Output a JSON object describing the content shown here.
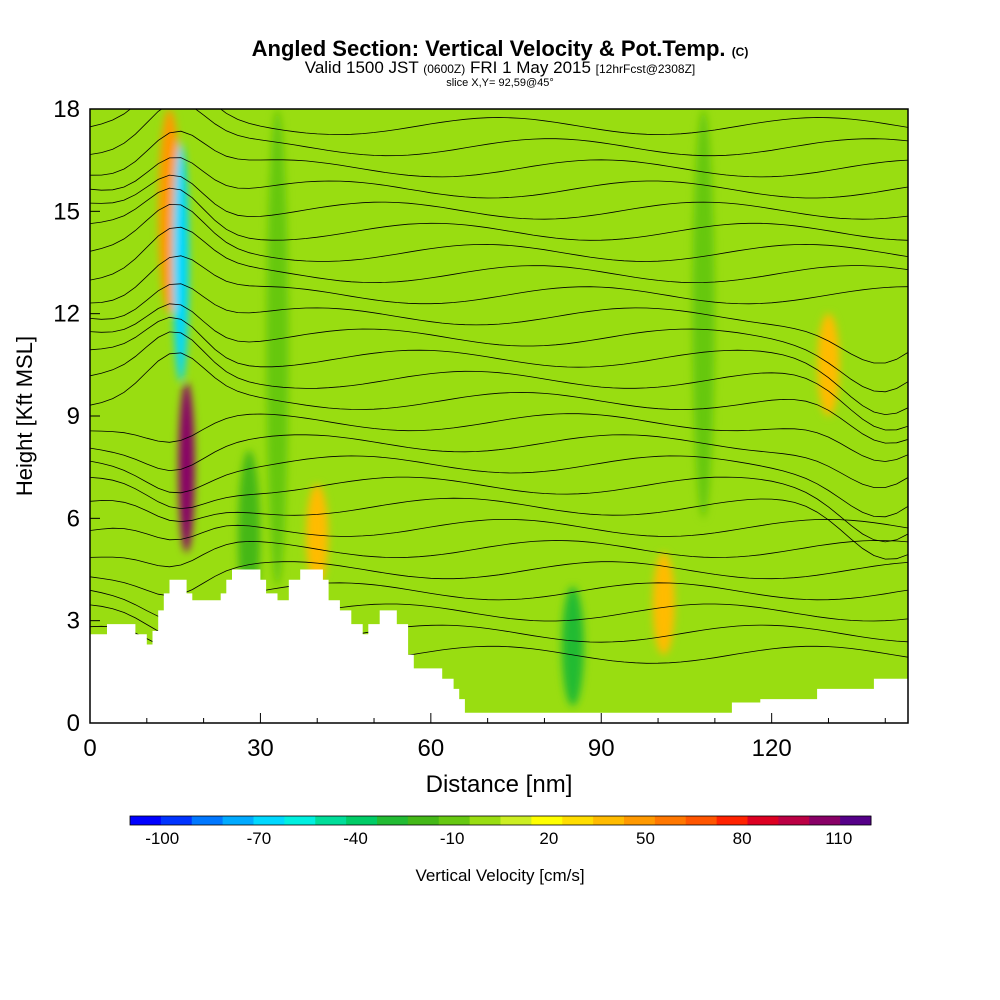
{
  "header": {
    "title": "Angled Section: Vertical Velocity & Pot.Temp.",
    "title_mark": "(C)",
    "valid_main": "Valid 1500 JST",
    "valid_utc": "(0600Z)",
    "valid_date": "FRI 1 May 2015",
    "forecast": "[12hrFcst@2308Z]",
    "slice": "slice X,Y= 92,59@45°"
  },
  "chart_data": {
    "type": "heatmap",
    "xlabel": "Distance [nm]",
    "ylabel": "Height [Kft MSL]",
    "xlim": [
      0,
      144
    ],
    "ylim": [
      0,
      18
    ],
    "x_ticks": [
      0,
      30,
      60,
      90,
      120
    ],
    "y_ticks": [
      0,
      3,
      6,
      9,
      12,
      15,
      18
    ],
    "colorbar": {
      "label": "Vertical Velocity [cm/s]",
      "min": -110,
      "max": 120,
      "step": 10,
      "tick_labels": [
        "-100",
        "-70",
        "-40",
        "-10",
        "20",
        "50",
        "80",
        "110"
      ],
      "colors": [
        "#0000ff",
        "#0033ff",
        "#0077ff",
        "#00aaff",
        "#00d8ff",
        "#00f0e0",
        "#00dd99",
        "#00cc66",
        "#22bb33",
        "#44b818",
        "#66c811",
        "#99dd11",
        "#ccee22",
        "#ffff00",
        "#ffdd00",
        "#ffbb00",
        "#ff9900",
        "#ff7700",
        "#ff5500",
        "#ff2200",
        "#dd0022",
        "#bb0044",
        "#880066",
        "#550088"
      ]
    },
    "velocity_features": [
      {
        "x": 14,
        "y_range": [
          12,
          18
        ],
        "value": 50,
        "kind": "updraft"
      },
      {
        "x": 17,
        "y_range": [
          5,
          10
        ],
        "value": 110,
        "kind": "updraft core"
      },
      {
        "x": 16,
        "y_range": [
          10,
          17
        ],
        "value": -70,
        "kind": "downdraft"
      },
      {
        "x": 40,
        "y_range": [
          4,
          7
        ],
        "value": 40,
        "kind": "updraft"
      },
      {
        "x": 101,
        "y_range": [
          2,
          5
        ],
        "value": 40,
        "kind": "updraft"
      },
      {
        "x": 130,
        "y_range": [
          9,
          12
        ],
        "value": 40,
        "kind": "updraft"
      },
      {
        "x": 28,
        "y_range": [
          3,
          8
        ],
        "value": -20,
        "kind": "downdraft"
      },
      {
        "x": 33,
        "y_range": [
          4,
          18
        ],
        "value": -10,
        "kind": "downdraft"
      },
      {
        "x": 85,
        "y_range": [
          0.5,
          4
        ],
        "value": -30,
        "kind": "downdraft"
      },
      {
        "x": 108,
        "y_range": [
          6,
          18
        ],
        "value": -10,
        "kind": "downdraft"
      }
    ],
    "terrain": [
      [
        0,
        2.6
      ],
      [
        3,
        2.6
      ],
      [
        3,
        2.9
      ],
      [
        8,
        2.9
      ],
      [
        8,
        2.6
      ],
      [
        10,
        2.6
      ],
      [
        10,
        2.3
      ],
      [
        11,
        2.3
      ],
      [
        11,
        2.7
      ],
      [
        12,
        2.7
      ],
      [
        12,
        3.3
      ],
      [
        13,
        3.3
      ],
      [
        13,
        3.8
      ],
      [
        14,
        3.8
      ],
      [
        14,
        4.2
      ],
      [
        17,
        4.2
      ],
      [
        17,
        3.8
      ],
      [
        18,
        3.8
      ],
      [
        18,
        3.6
      ],
      [
        23,
        3.6
      ],
      [
        23,
        3.8
      ],
      [
        24,
        3.8
      ],
      [
        24,
        4.2
      ],
      [
        25,
        4.2
      ],
      [
        25,
        4.5
      ],
      [
        30,
        4.5
      ],
      [
        30,
        4.2
      ],
      [
        31,
        4.2
      ],
      [
        31,
        3.8
      ],
      [
        33,
        3.8
      ],
      [
        33,
        3.6
      ],
      [
        35,
        3.6
      ],
      [
        35,
        4.2
      ],
      [
        37,
        4.2
      ],
      [
        37,
        4.5
      ],
      [
        41,
        4.5
      ],
      [
        41,
        4.2
      ],
      [
        42,
        4.2
      ],
      [
        42,
        3.6
      ],
      [
        44,
        3.6
      ],
      [
        44,
        3.3
      ],
      [
        46,
        3.3
      ],
      [
        46,
        2.9
      ],
      [
        48,
        2.9
      ],
      [
        48,
        2.6
      ],
      [
        49,
        2.6
      ],
      [
        49,
        2.9
      ],
      [
        51,
        2.9
      ],
      [
        51,
        3.3
      ],
      [
        54,
        3.3
      ],
      [
        54,
        2.9
      ],
      [
        56,
        2.9
      ],
      [
        56,
        2.0
      ],
      [
        57,
        2.0
      ],
      [
        57,
        1.6
      ],
      [
        62,
        1.6
      ],
      [
        62,
        1.3
      ],
      [
        64,
        1.3
      ],
      [
        64,
        1.0
      ],
      [
        65,
        1.0
      ],
      [
        65,
        0.7
      ],
      [
        66,
        0.7
      ],
      [
        66,
        0.3
      ],
      [
        113,
        0.3
      ],
      [
        113,
        0.6
      ],
      [
        118,
        0.6
      ],
      [
        118,
        0.7
      ],
      [
        128,
        0.7
      ],
      [
        128,
        1.0
      ],
      [
        138,
        1.0
      ],
      [
        138,
        1.3
      ],
      [
        144,
        1.3
      ]
    ]
  }
}
